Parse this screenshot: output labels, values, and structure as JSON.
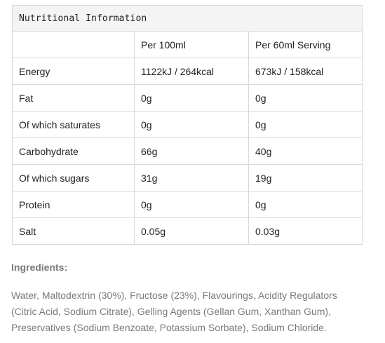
{
  "table": {
    "title": "Nutritional Information",
    "columns": [
      "",
      "Per 100ml",
      "Per 60ml Serving"
    ],
    "rows": [
      {
        "label": "Energy",
        "per_100ml": "1122kJ / 264kcal",
        "per_serving": "673kJ / 158kcal"
      },
      {
        "label": "Fat",
        "per_100ml": "0g",
        "per_serving": "0g"
      },
      {
        "label": "Of which saturates",
        "per_100ml": "0g",
        "per_serving": "0g"
      },
      {
        "label": "Carbohydrate",
        "per_100ml": "66g",
        "per_serving": "40g"
      },
      {
        "label": "Of which sugars",
        "per_100ml": "31g",
        "per_serving": "19g"
      },
      {
        "label": "Protein",
        "per_100ml": "0g",
        "per_serving": "0g"
      },
      {
        "label": "Salt",
        "per_100ml": "0.05g",
        "per_serving": "0.03g"
      }
    ]
  },
  "ingredients": {
    "heading": "Ingredients:",
    "text": "Water, Maltodextrin (30%), Fructose (23%), Flavourings, Acidity Regulators (Citric Acid, Sodium Citrate), Gelling Agents (Gellan Gum, Xanthan Gum), Preservatives (Sodium Benzoate, Potassium Sorbate), Sodium Chloride."
  }
}
